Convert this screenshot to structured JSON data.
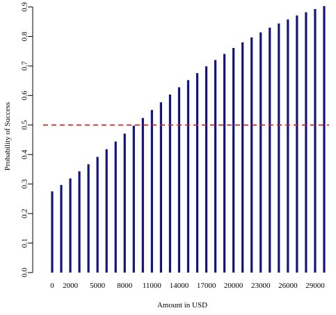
{
  "chart_data": {
    "type": "bar",
    "title": "",
    "xlabel": "Amount in USD",
    "ylabel": "Probability of Success",
    "x": [
      0,
      1000,
      2000,
      3000,
      4000,
      5000,
      6000,
      7000,
      8000,
      9000,
      10000,
      11000,
      12000,
      13000,
      14000,
      15000,
      16000,
      17000,
      18000,
      19000,
      20000,
      21000,
      22000,
      23000,
      24000,
      25000,
      26000,
      27000,
      28000,
      29000,
      30000
    ],
    "values": [
      0.275,
      0.297,
      0.319,
      0.343,
      0.367,
      0.392,
      0.418,
      0.444,
      0.471,
      0.498,
      0.524,
      0.551,
      0.577,
      0.603,
      0.628,
      0.652,
      0.676,
      0.699,
      0.72,
      0.741,
      0.761,
      0.78,
      0.797,
      0.814,
      0.83,
      0.844,
      0.858,
      0.871,
      0.882,
      0.893,
      0.903
    ],
    "x_tick_labels": [
      "0",
      "2000",
      "5000",
      "8000",
      "11000",
      "14000",
      "17000",
      "20000",
      "23000",
      "26000",
      "29000"
    ],
    "x_tick_indices": [
      0,
      2,
      5,
      8,
      11,
      14,
      17,
      20,
      23,
      26,
      29
    ],
    "y_ticks": [
      0.0,
      0.1,
      0.2,
      0.3,
      0.4,
      0.5,
      0.6,
      0.7,
      0.8,
      0.9
    ],
    "y_tick_labels": [
      "0.0",
      "0.1",
      "0.2",
      "0.3",
      "0.4",
      "0.5",
      "0.6",
      "0.7",
      "0.8",
      "0.9"
    ],
    "ylim": [
      0,
      0.9
    ],
    "reference_line": {
      "y": 0.5,
      "style": "dashed"
    },
    "grid": false,
    "colors": {
      "bar": "#14147a",
      "reference_line": "#e31a1c"
    }
  }
}
